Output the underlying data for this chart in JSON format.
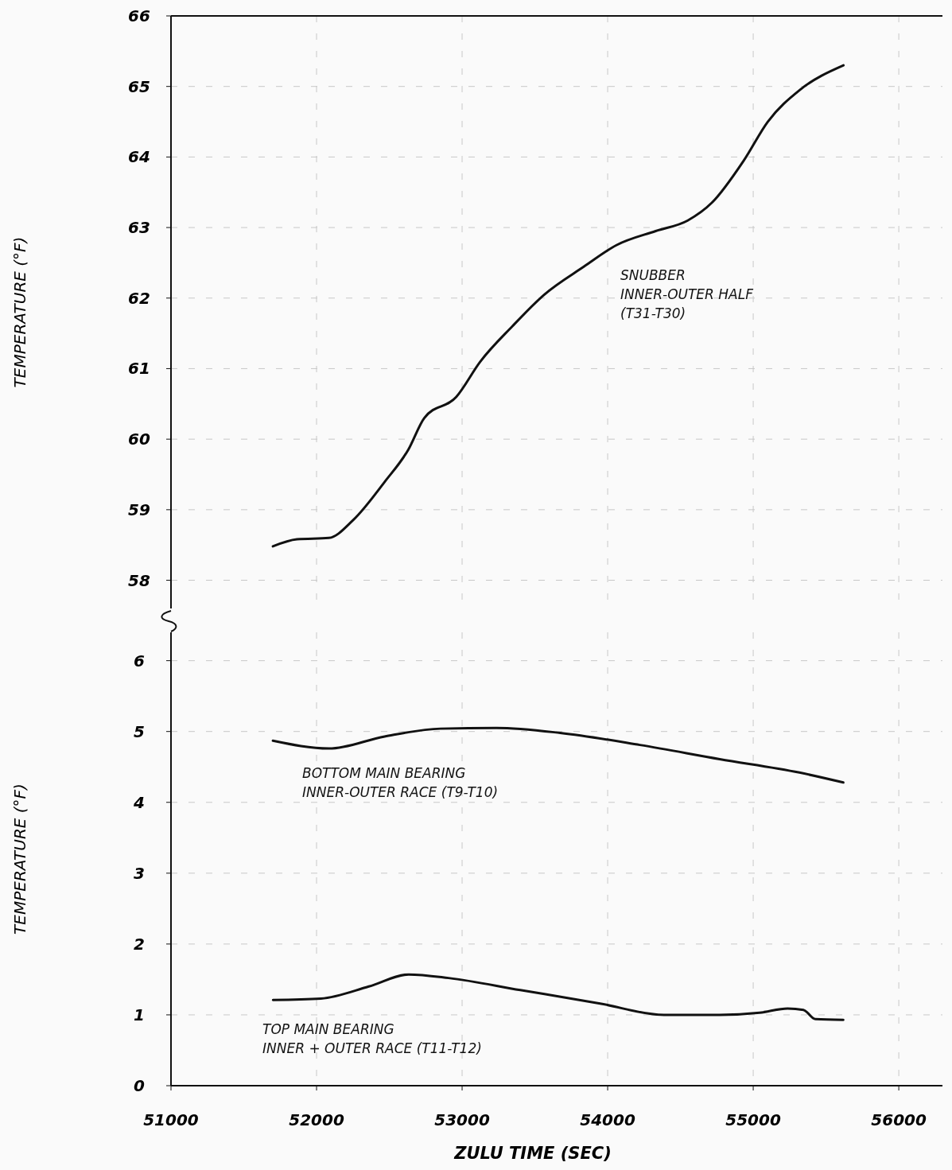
{
  "chart_data": [
    {
      "type": "line",
      "ylabel": "TEMPERATURE (°F)",
      "xlim": [
        51000,
        56300
      ],
      "xticks": [
        51000,
        52000,
        53000,
        54000,
        55000,
        56000
      ],
      "ylim": [
        57.6,
        66
      ],
      "yticks": [
        58,
        59,
        60,
        61,
        62,
        63,
        64,
        65,
        66
      ],
      "tick_labels": "y",
      "grid": true,
      "marker": "none",
      "line_style": "solid",
      "series": [
        {
          "name": "SNUBBER\nINNER-OUTER HALF\n(T31-T30)",
          "color": "#111111",
          "x": [
            51700,
            51865,
            52085,
            52250,
            52470,
            52630,
            52740,
            52960,
            53125,
            53345,
            53565,
            53840,
            54060,
            54330,
            54550,
            54715,
            54935,
            55100,
            55320,
            55620
          ],
          "values": [
            58.48,
            58.58,
            58.6,
            58.85,
            59.4,
            59.85,
            60.3,
            60.6,
            61.1,
            61.6,
            62.05,
            62.45,
            62.75,
            62.95,
            63.1,
            63.35,
            63.95,
            64.5,
            64.95,
            65.3
          ]
        }
      ]
    },
    {
      "type": "line",
      "ylabel": "TEMPERATURE (°F)",
      "xlabel": "ZULU TIME (SEC)",
      "xlim": [
        51000,
        56300
      ],
      "xticks": [
        51000,
        52000,
        53000,
        54000,
        55000,
        56000
      ],
      "ylim": [
        0,
        6.4
      ],
      "yticks": [
        0,
        1,
        2,
        3,
        4,
        5,
        6
      ],
      "grid": true,
      "marker": "none",
      "line_style": "solid",
      "series": [
        {
          "name": "BOTTOM MAIN BEARING\nINNER-OUTER RACE (T9-T10)",
          "color": "#111111",
          "x": [
            51700,
            52085,
            52468,
            52852,
            53236,
            53674,
            54222,
            54770,
            55318,
            55619
          ],
          "values": [
            4.87,
            4.76,
            4.93,
            5.04,
            5.05,
            4.98,
            4.81,
            4.61,
            4.42,
            4.28
          ]
        },
        {
          "name": "TOP MAIN BEARING\nINNER + OUTER RACE (T11-T12)",
          "color": "#111111",
          "x": [
            51701,
            52030,
            52359,
            52633,
            52907,
            53400,
            53948,
            54386,
            54770,
            55044,
            55236,
            55345,
            55427,
            55619
          ],
          "values": [
            1.21,
            1.23,
            1.4,
            1.57,
            1.52,
            1.35,
            1.16,
            1.0,
            1.0,
            1.03,
            1.09,
            1.07,
            0.94,
            0.93
          ]
        }
      ]
    }
  ]
}
